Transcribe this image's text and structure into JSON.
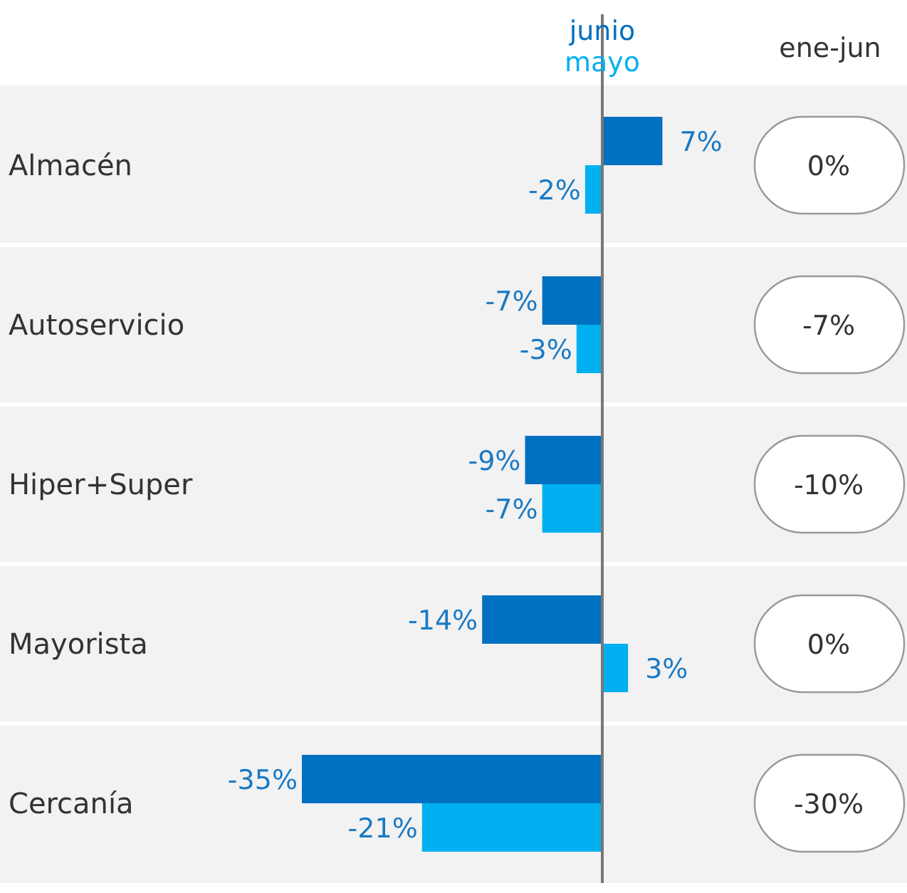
{
  "chart_data": {
    "type": "bar",
    "orientation": "horizontal",
    "categories": [
      "Almacén",
      "Autoservicio",
      "Hiper+Super",
      "Mayorista",
      "Cercanía"
    ],
    "series": [
      {
        "name": "junio",
        "color": "#0070c0",
        "values": [
          7,
          -7,
          -9,
          -14,
          -35
        ],
        "value_labels": [
          "7%",
          "-7%",
          "-9%",
          "-14%",
          "-35%"
        ]
      },
      {
        "name": "mayo",
        "color": "#00b0f0",
        "values": [
          -2,
          -3,
          -7,
          3,
          -21
        ],
        "value_labels": [
          "-2%",
          "-3%",
          "-7%",
          "3%",
          "-21%"
        ]
      }
    ],
    "legend": "top",
    "annotations": [
      "ene-jun",
      "0%",
      "-7%",
      "-10%",
      "0%",
      "-30%"
    ]
  }
}
